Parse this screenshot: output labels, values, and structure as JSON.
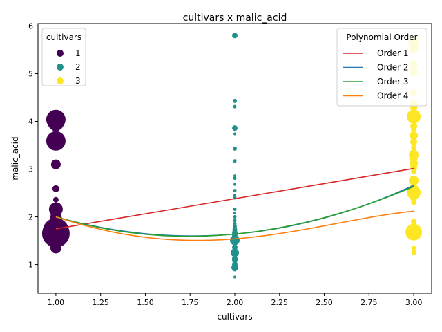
{
  "chart_data": {
    "type": "scatter",
    "title": "cultivars x malic_acid",
    "xlabel": "cultivars",
    "ylabel": "malic_acid",
    "xlim": [
      0.9,
      3.1
    ],
    "ylim": [
      0.4,
      6.05
    ],
    "xticks": [
      "1.00",
      "1.25",
      "1.50",
      "1.75",
      "2.00",
      "2.25",
      "2.50",
      "2.75",
      "3.00"
    ],
    "xtick_values": [
      1.0,
      1.25,
      1.5,
      1.75,
      2.0,
      2.25,
      2.5,
      2.75,
      3.0
    ],
    "yticks": [
      "1",
      "2",
      "3",
      "4",
      "5",
      "6"
    ],
    "ytick_values": [
      1,
      2,
      3,
      4,
      5,
      6
    ],
    "grid": false,
    "scatter_legend": {
      "title": "cultivars",
      "placement": "upper-left",
      "entries": [
        {
          "label": "1",
          "color": "#440154"
        },
        {
          "label": "2",
          "color": "#21918c"
        },
        {
          "label": "3",
          "color": "#fde725"
        }
      ]
    },
    "fit_legend": {
      "title": "Polynomial Order",
      "placement": "upper-right",
      "entries": [
        {
          "label": "Order 1",
          "color": "#d62728"
        },
        {
          "label": "Order 2",
          "color": "#1f77b4"
        },
        {
          "label": "Order 3",
          "color": "#2ca02c"
        },
        {
          "label": "Order 4",
          "color": "#ff7f0e"
        }
      ]
    },
    "series": [
      {
        "cultivar": 1,
        "color": "#440154",
        "points": [
          {
            "x": 1,
            "y": 4.04,
            "s": 14
          },
          {
            "x": 1,
            "y": 3.98,
            "s": 12
          },
          {
            "x": 1,
            "y": 3.84,
            "s": 5
          },
          {
            "x": 1,
            "y": 3.59,
            "s": 14
          },
          {
            "x": 1,
            "y": 3.1,
            "s": 7
          },
          {
            "x": 1,
            "y": 2.59,
            "s": 5
          },
          {
            "x": 1,
            "y": 2.36,
            "s": 4
          },
          {
            "x": 1,
            "y": 2.16,
            "s": 10
          },
          {
            "x": 1,
            "y": 2.0,
            "s": 8
          },
          {
            "x": 1,
            "y": 1.95,
            "s": 9
          },
          {
            "x": 1,
            "y": 1.87,
            "s": 10
          },
          {
            "x": 1,
            "y": 1.81,
            "s": 12
          },
          {
            "x": 1,
            "y": 1.77,
            "s": 15
          },
          {
            "x": 1,
            "y": 1.73,
            "s": 17
          },
          {
            "x": 1,
            "y": 1.7,
            "s": 19
          },
          {
            "x": 1,
            "y": 1.68,
            "s": 18
          },
          {
            "x": 1,
            "y": 1.65,
            "s": 20
          },
          {
            "x": 1,
            "y": 1.6,
            "s": 15
          },
          {
            "x": 1,
            "y": 1.52,
            "s": 12
          },
          {
            "x": 1,
            "y": 1.45,
            "s": 9
          },
          {
            "x": 1,
            "y": 1.35,
            "s": 8
          }
        ]
      },
      {
        "cultivar": 2,
        "color": "#21918c",
        "points": [
          {
            "x": 2,
            "y": 5.8,
            "s": 4
          },
          {
            "x": 2,
            "y": 4.43,
            "s": 3
          },
          {
            "x": 2,
            "y": 4.31,
            "s": 2.5
          },
          {
            "x": 2,
            "y": 3.86,
            "s": 4
          },
          {
            "x": 2,
            "y": 3.74,
            "s": 2
          },
          {
            "x": 2,
            "y": 3.43,
            "s": 3
          },
          {
            "x": 2,
            "y": 3.17,
            "s": 2.5
          },
          {
            "x": 2,
            "y": 2.86,
            "s": 2
          },
          {
            "x": 2,
            "y": 2.81,
            "s": 2.5
          },
          {
            "x": 2,
            "y": 2.68,
            "s": 2
          },
          {
            "x": 2,
            "y": 2.55,
            "s": 2.5
          },
          {
            "x": 2,
            "y": 2.45,
            "s": 2
          },
          {
            "x": 2,
            "y": 2.4,
            "s": 2.5
          },
          {
            "x": 2,
            "y": 2.16,
            "s": 2.5
          },
          {
            "x": 2,
            "y": 2.08,
            "s": 2
          },
          {
            "x": 2,
            "y": 2.0,
            "s": 2.5
          },
          {
            "x": 2,
            "y": 1.92,
            "s": 2.5
          },
          {
            "x": 2,
            "y": 1.86,
            "s": 2.5
          },
          {
            "x": 2,
            "y": 1.8,
            "s": 3
          },
          {
            "x": 2,
            "y": 1.73,
            "s": 3.5
          },
          {
            "x": 2,
            "y": 1.67,
            "s": 4
          },
          {
            "x": 2,
            "y": 1.61,
            "s": 4
          },
          {
            "x": 2,
            "y": 1.51,
            "s": 7
          },
          {
            "x": 2,
            "y": 1.45,
            "s": 4
          },
          {
            "x": 2,
            "y": 1.36,
            "s": 4
          },
          {
            "x": 2,
            "y": 1.25,
            "s": 6
          },
          {
            "x": 2,
            "y": 1.13,
            "s": 4
          },
          {
            "x": 2,
            "y": 1.09,
            "s": 4
          },
          {
            "x": 2,
            "y": 1.01,
            "s": 4
          },
          {
            "x": 2,
            "y": 0.98,
            "s": 4
          },
          {
            "x": 2,
            "y": 0.94,
            "s": 5
          },
          {
            "x": 2,
            "y": 0.9,
            "s": 3
          },
          {
            "x": 2,
            "y": 0.74,
            "s": 2
          }
        ]
      },
      {
        "cultivar": 3,
        "color": "#fde725",
        "points": [
          {
            "x": 3,
            "y": 5.65,
            "s": 8
          },
          {
            "x": 3,
            "y": 5.51,
            "s": 6
          },
          {
            "x": 3,
            "y": 5.19,
            "s": 6
          },
          {
            "x": 3,
            "y": 5.04,
            "s": 6
          },
          {
            "x": 3,
            "y": 4.6,
            "s": 5
          },
          {
            "x": 3,
            "y": 4.36,
            "s": 6
          },
          {
            "x": 3,
            "y": 4.28,
            "s": 5
          },
          {
            "x": 3,
            "y": 4.1,
            "s": 10
          },
          {
            "x": 3,
            "y": 3.9,
            "s": 5
          },
          {
            "x": 3,
            "y": 3.83,
            "s": 4
          },
          {
            "x": 3,
            "y": 3.7,
            "s": 6
          },
          {
            "x": 3,
            "y": 3.57,
            "s": 5
          },
          {
            "x": 3,
            "y": 3.45,
            "s": 4
          },
          {
            "x": 3,
            "y": 3.37,
            "s": 4
          },
          {
            "x": 3,
            "y": 3.3,
            "s": 7
          },
          {
            "x": 3,
            "y": 3.24,
            "s": 6
          },
          {
            "x": 3,
            "y": 3.12,
            "s": 6
          },
          {
            "x": 3,
            "y": 3.03,
            "s": 5
          },
          {
            "x": 3,
            "y": 2.96,
            "s": 4
          },
          {
            "x": 3,
            "y": 2.76,
            "s": 7
          },
          {
            "x": 3,
            "y": 2.58,
            "s": 7
          },
          {
            "x": 3,
            "y": 2.51,
            "s": 10
          },
          {
            "x": 3,
            "y": 2.4,
            "s": 5
          },
          {
            "x": 3,
            "y": 2.31,
            "s": 4
          },
          {
            "x": 3,
            "y": 1.9,
            "s": 4
          },
          {
            "x": 3,
            "y": 1.8,
            "s": 5
          },
          {
            "x": 3,
            "y": 1.68,
            "s": 12
          },
          {
            "x": 3,
            "y": 1.35,
            "s": 3
          },
          {
            "x": 3,
            "y": 1.29,
            "s": 3
          },
          {
            "x": 3,
            "y": 1.24,
            "s": 3
          }
        ]
      }
    ],
    "fits": [
      {
        "name": "Order 1",
        "color": "#d62728",
        "degree": 1,
        "coefficients": [
          1.115,
          0.633
        ]
      },
      {
        "name": "Order 2",
        "color": "#1f77b4",
        "degree": 2,
        "coefficients": [
          3.74,
          -2.43,
          0.69
        ]
      },
      {
        "name": "Order 3",
        "color": "#2ca02c",
        "degree": 3,
        "coefficients": [
          4.0,
          -2.9,
          0.95,
          -0.045
        ]
      },
      {
        "name": "Order 4",
        "color": "#ff7f0e",
        "degree": 4,
        "coefficients": [
          3.5,
          -1.3,
          -0.8,
          0.72,
          -0.12
        ]
      }
    ]
  }
}
